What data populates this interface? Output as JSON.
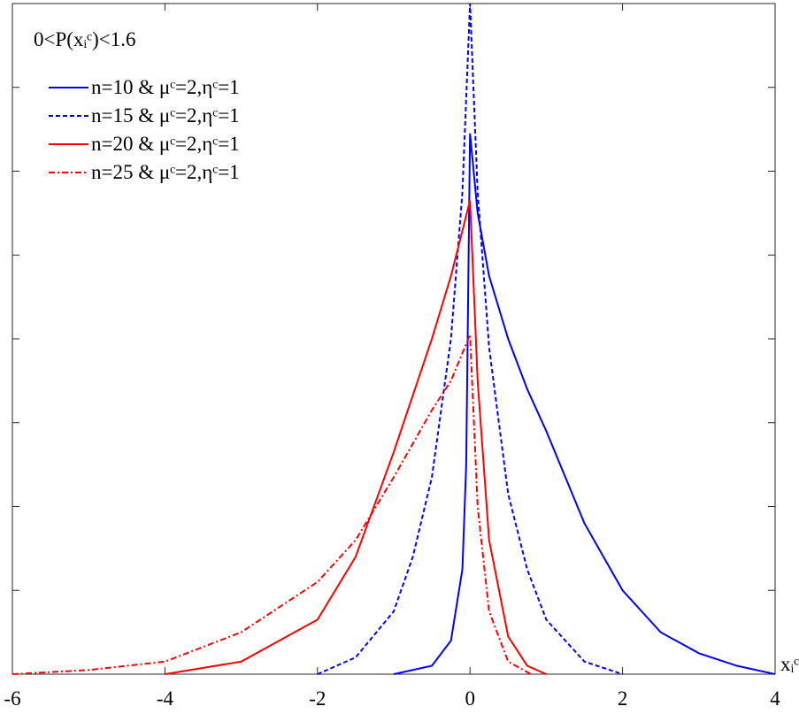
{
  "chart_data": {
    "type": "line",
    "annotation": "0<P(xᵢᶜ)<1.6",
    "x_label": "xᵢᶜ",
    "xlim": [
      -6,
      4
    ],
    "xticks": [
      -6,
      -4,
      -2,
      0,
      2,
      4
    ],
    "ylim": [
      0,
      1.6
    ],
    "yticks": [
      0,
      0.2,
      0.4,
      0.6,
      0.8,
      1,
      1.2,
      1.4,
      1.6
    ],
    "series": [
      {
        "name": "n=10 & μᶜ=2,ηᶜ=1",
        "color": "#0000ff",
        "dash": "solid",
        "x": [
          -1,
          -0.5,
          -0.25,
          -0.1,
          -0.05,
          0,
          0.1,
          0.25,
          0.5,
          0.75,
          1,
          1.5,
          2,
          2.5,
          3,
          3.5,
          4
        ],
        "values": [
          0,
          0.02,
          0.08,
          0.25,
          0.5,
          1.29,
          1.1,
          0.95,
          0.8,
          0.68,
          0.58,
          0.36,
          0.2,
          0.1,
          0.05,
          0.02,
          0
        ]
      },
      {
        "name": "n=15 & μᶜ=2,ηᶜ=1",
        "color": "#0000ff",
        "dash": "dashed",
        "x": [
          -2,
          -1.5,
          -1,
          -0.75,
          -0.5,
          -0.25,
          -0.1,
          0,
          0.1,
          0.25,
          0.5,
          0.75,
          1,
          1.5,
          2
        ],
        "values": [
          0,
          0.04,
          0.15,
          0.28,
          0.47,
          0.8,
          1.15,
          1.6,
          1.15,
          0.78,
          0.43,
          0.25,
          0.13,
          0.03,
          0
        ]
      },
      {
        "name": "n=20 & μᶜ=2,ηᶜ=1",
        "color": "#ff0000",
        "dash": "solid",
        "x": [
          -4,
          -3,
          -2,
          -1.5,
          -1,
          -0.5,
          -0.25,
          0,
          0.1,
          0.25,
          0.5,
          0.75,
          1
        ],
        "values": [
          0,
          0.03,
          0.13,
          0.28,
          0.53,
          0.8,
          0.95,
          1.13,
          0.7,
          0.32,
          0.09,
          0.02,
          0
        ]
      },
      {
        "name": "n=25 & μᶜ=2,ηᶜ=1",
        "color": "#ff0000",
        "dash": "dashdot",
        "x": [
          -6,
          -5,
          -4,
          -3,
          -2,
          -1.5,
          -1,
          -0.5,
          -0.25,
          0,
          0.1,
          0.25,
          0.5,
          0.8
        ],
        "values": [
          0,
          0.01,
          0.03,
          0.1,
          0.22,
          0.32,
          0.47,
          0.63,
          0.7,
          0.81,
          0.4,
          0.15,
          0.03,
          0
        ]
      }
    ]
  }
}
